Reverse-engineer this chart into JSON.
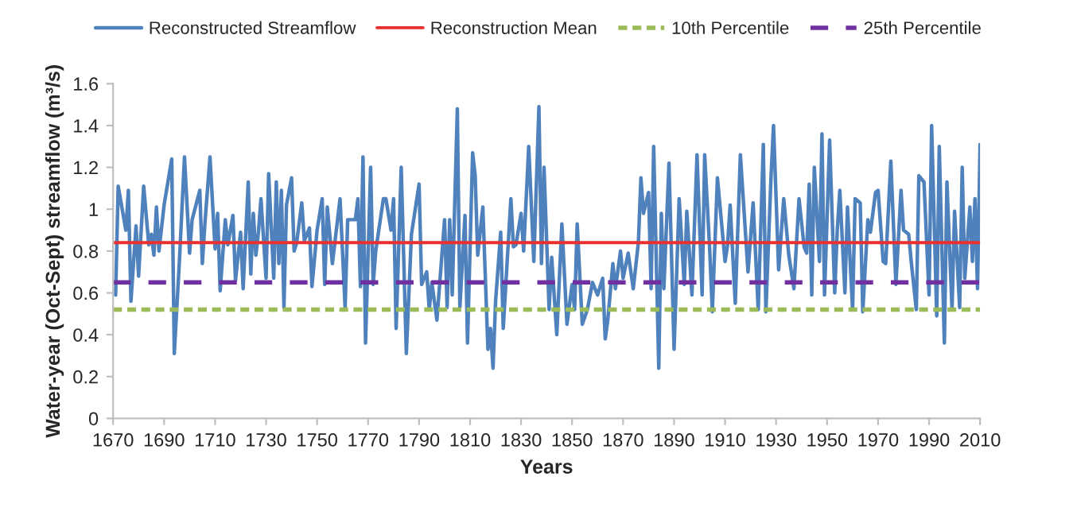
{
  "chart_data": {
    "type": "line",
    "xlabel": "Years",
    "ylabel": "Water-year (Oct-Sept) streamflow (m³/s)",
    "xlim": [
      1670,
      2010
    ],
    "xticks": [
      1670,
      1690,
      1710,
      1730,
      1750,
      1770,
      1790,
      1810,
      1830,
      1850,
      1870,
      1890,
      1910,
      1930,
      1950,
      1970,
      1990,
      2010
    ],
    "ylim": [
      0,
      1.6
    ],
    "yticks": [
      0,
      0.2,
      0.4,
      0.6,
      0.8,
      1,
      1.2,
      1.4,
      1.6
    ],
    "grid": false,
    "legend": "top",
    "marker": "none",
    "line_style": "solid",
    "series": [
      {
        "name": "Reconstructed Streamflow",
        "color": "#4f81bd",
        "x": [
          1671,
          1672,
          1675,
          1676,
          1677,
          1679,
          1680,
          1682,
          1684,
          1685,
          1686,
          1687,
          1688,
          1690,
          1693,
          1694,
          1696,
          1698,
          1700,
          1701,
          1704,
          1705,
          1706,
          1708,
          1710,
          1711,
          1712,
          1714,
          1715,
          1717,
          1718,
          1720,
          1721,
          1723,
          1724,
          1725,
          1726,
          1727,
          1728,
          1730,
          1731,
          1733,
          1734,
          1735,
          1736,
          1737,
          1738,
          1740,
          1741,
          1742,
          1744,
          1745,
          1747,
          1748,
          1750,
          1752,
          1753,
          1754,
          1756,
          1759,
          1761,
          1762,
          1765,
          1766,
          1767,
          1768,
          1769,
          1771,
          1772,
          1773,
          1776,
          1777,
          1779,
          1780,
          1781,
          1783,
          1785,
          1787,
          1790,
          1791,
          1793,
          1794,
          1795,
          1797,
          1800,
          1801,
          1802,
          1803,
          1805,
          1806,
          1808,
          1809,
          1811,
          1812,
          1813,
          1815,
          1817,
          1818,
          1819,
          1820,
          1822,
          1823,
          1826,
          1827,
          1828,
          1830,
          1831,
          1833,
          1835,
          1837,
          1838,
          1839,
          1841,
          1842,
          1844,
          1846,
          1848,
          1850,
          1851,
          1852,
          1854,
          1856,
          1858,
          1860,
          1862,
          1863,
          1864,
          1866,
          1867,
          1869,
          1870,
          1872,
          1874,
          1876,
          1877,
          1878,
          1880,
          1881,
          1882,
          1884,
          1885,
          1886,
          1888,
          1890,
          1892,
          1894,
          1895,
          1897,
          1899,
          1901,
          1902,
          1904,
          1905,
          1907,
          1910,
          1911,
          1912,
          1914,
          1916,
          1919,
          1921,
          1923,
          1925,
          1926,
          1928,
          1929,
          1931,
          1933,
          1935,
          1937,
          1939,
          1941,
          1942,
          1943,
          1944,
          1945,
          1947,
          1948,
          1949,
          1951,
          1953,
          1954,
          1955,
          1957,
          1958,
          1960,
          1961,
          1963,
          1964,
          1966,
          1967,
          1969,
          1970,
          1972,
          1973,
          1975,
          1977,
          1979,
          1980,
          1982,
          1983,
          1985,
          1986,
          1988,
          1990,
          1991,
          1993,
          1994,
          1996,
          1997,
          1999,
          2000,
          2002,
          2003,
          2004,
          2006,
          2007,
          2008,
          2009,
          2010
        ],
        "values": [
          0.59,
          1.11,
          0.9,
          1.09,
          0.56,
          0.92,
          0.68,
          1.11,
          0.83,
          0.88,
          0.78,
          1.01,
          0.8,
          1.02,
          1.24,
          0.31,
          0.75,
          1.25,
          0.79,
          0.95,
          1.09,
          0.74,
          0.93,
          1.25,
          0.81,
          0.98,
          0.61,
          0.95,
          0.83,
          0.97,
          0.66,
          0.89,
          0.62,
          1.13,
          0.69,
          0.98,
          0.78,
          0.89,
          1.05,
          0.67,
          1.17,
          0.67,
          1.13,
          0.74,
          1.09,
          0.53,
          1.02,
          1.15,
          0.8,
          0.84,
          1.03,
          0.85,
          0.91,
          0.63,
          0.9,
          1.05,
          0.64,
          1.01,
          0.74,
          1.05,
          0.53,
          0.95,
          0.95,
          1.05,
          0.63,
          1.25,
          0.36,
          1.2,
          0.64,
          0.8,
          1.05,
          1.05,
          0.9,
          1.05,
          0.43,
          1.2,
          0.31,
          0.88,
          1.12,
          0.64,
          0.7,
          0.52,
          0.65,
          0.47,
          0.95,
          0.53,
          0.95,
          0.59,
          1.48,
          0.53,
          0.97,
          0.36,
          1.27,
          1.16,
          0.78,
          1.01,
          0.33,
          0.43,
          0.24,
          0.56,
          0.89,
          0.43,
          1.05,
          0.82,
          0.83,
          0.98,
          0.8,
          1.3,
          0.75,
          1.49,
          0.74,
          1.2,
          0.52,
          0.77,
          0.4,
          0.93,
          0.45,
          0.64,
          0.52,
          0.93,
          0.45,
          0.52,
          0.65,
          0.59,
          0.67,
          0.38,
          0.47,
          0.74,
          0.62,
          0.8,
          0.67,
          0.79,
          0.62,
          0.84,
          1.15,
          0.98,
          1.08,
          0.62,
          1.3,
          0.24,
          0.98,
          0.62,
          1.22,
          0.33,
          1.05,
          0.64,
          0.99,
          0.59,
          1.26,
          0.59,
          1.26,
          0.8,
          0.51,
          1.15,
          0.75,
          0.83,
          1.02,
          0.55,
          1.26,
          0.7,
          1.03,
          0.52,
          1.31,
          0.51,
          1.15,
          1.4,
          0.71,
          1.05,
          0.78,
          0.62,
          1.05,
          0.82,
          0.79,
          1.12,
          0.59,
          1.2,
          0.75,
          1.36,
          0.59,
          1.33,
          0.6,
          0.9,
          1.09,
          0.6,
          1.01,
          0.52,
          1.05,
          1.03,
          0.51,
          0.95,
          0.89,
          1.08,
          1.09,
          0.75,
          0.74,
          1.23,
          0.64,
          1.09,
          0.9,
          0.88,
          0.75,
          0.52,
          1.16,
          1.13,
          0.59,
          1.4,
          0.49,
          1.3,
          0.36,
          1.13,
          0.52,
          0.99,
          0.53,
          1.2,
          0.67,
          1.01,
          0.75,
          1.05,
          0.62,
          1.31
        ]
      }
    ],
    "ref_lines": [
      {
        "axis": "y",
        "value": 0.84,
        "label": "Reconstruction Mean",
        "color": "#e8312f",
        "line_style": "solid"
      },
      {
        "axis": "y",
        "value": 0.52,
        "label": "10th Percentile",
        "color": "#9bbb59",
        "line_style": "dashed"
      },
      {
        "axis": "y",
        "value": 0.65,
        "label": "25th Percentile",
        "color": "#7030a0",
        "line_style": "dashed"
      }
    ]
  }
}
